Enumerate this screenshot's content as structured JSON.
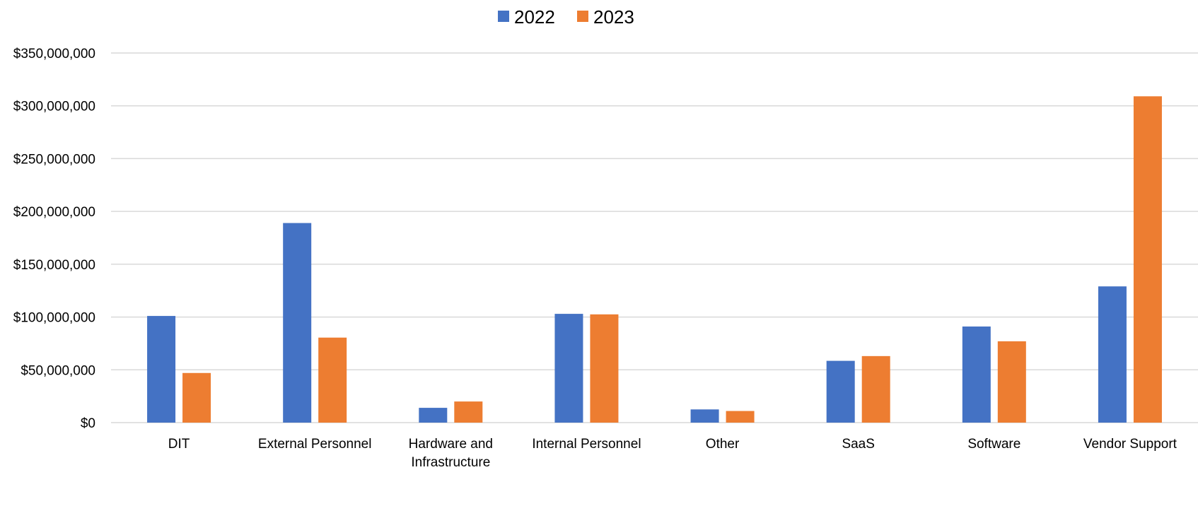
{
  "chart_data": {
    "type": "bar",
    "categories": [
      "DIT",
      "External Personnel",
      "Hardware and Infrastructure",
      "Internal Personnel",
      "Other",
      "SaaS",
      "Software",
      "Vendor Support"
    ],
    "category_lines": [
      [
        "DIT"
      ],
      [
        "External Personnel"
      ],
      [
        "Hardware and",
        "Infrastructure"
      ],
      [
        "Internal Personnel"
      ],
      [
        "Other"
      ],
      [
        "SaaS"
      ],
      [
        "Software"
      ],
      [
        "Vendor Support"
      ]
    ],
    "series": [
      {
        "name": "2022",
        "color": "#4472C4",
        "values": [
          101000000,
          189000000,
          14000000,
          103000000,
          12500000,
          58500000,
          91000000,
          129000000
        ]
      },
      {
        "name": "2023",
        "color": "#ED7D31",
        "values": [
          47000000,
          80500000,
          20000000,
          102500000,
          11000000,
          63000000,
          77000000,
          309000000
        ]
      }
    ],
    "ylim": [
      0,
      350000000
    ],
    "yticks": [
      0,
      50000000,
      100000000,
      150000000,
      200000000,
      250000000,
      300000000,
      350000000
    ],
    "ytick_labels": [
      "$0",
      "$50,000,000",
      "$100,000,000",
      "$150,000,000",
      "$200,000,000",
      "$250,000,000",
      "$300,000,000",
      "$350,000,000"
    ],
    "title": "",
    "xlabel": "",
    "ylabel": "",
    "grid": true,
    "legend_position": "top-center"
  }
}
